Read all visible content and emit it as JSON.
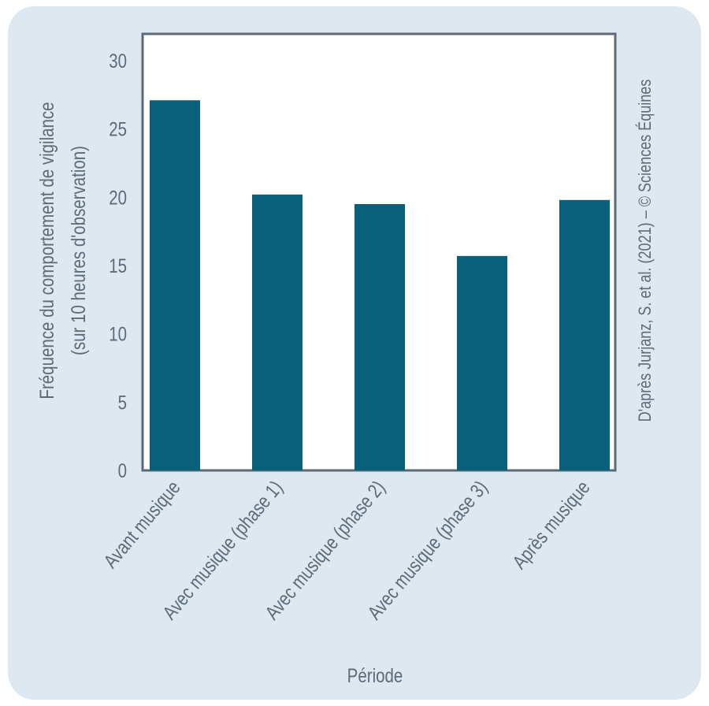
{
  "chart_data": {
    "type": "bar",
    "categories": [
      "Avant musique",
      "Avec musique (phase 1)",
      "Avec musique (phase 2)",
      "Avec musique (phase 3)",
      "Après musique"
    ],
    "values": [
      27.1,
      20.2,
      19.5,
      15.7,
      19.8
    ],
    "xlabel": "Période",
    "ylabel_line1": "Fréquence du comportement de vigilance",
    "ylabel_line2": "(sur 10 heures d'observation)",
    "ylim": [
      0,
      32
    ],
    "yticks": [
      0,
      5,
      10,
      15,
      20,
      25,
      30
    ],
    "grid": false,
    "credit": "D'après Jurjanz, S. et al. (2021) – © Sciences Équines",
    "colors": {
      "bar": "#09607a",
      "axis": "#5b6a74",
      "text": "#5c6b78",
      "background": "#dde8f1",
      "plot_background": "#ffffff"
    }
  }
}
